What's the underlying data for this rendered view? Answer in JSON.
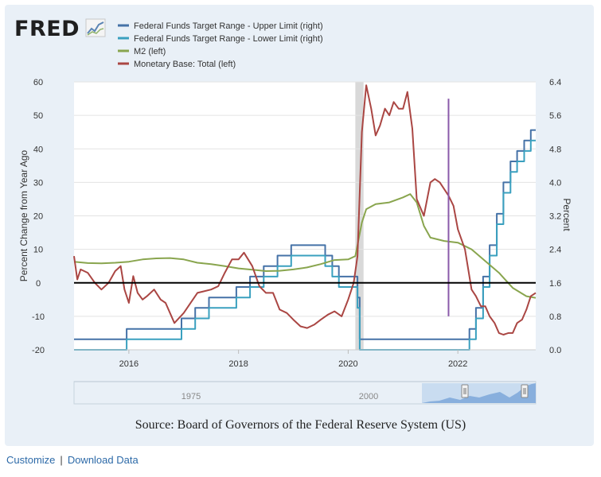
{
  "brand": {
    "logo_text": "FRED"
  },
  "legend": [
    {
      "label": "Federal Funds Target Range - Upper Limit (right)",
      "color": "#4572a7"
    },
    {
      "label": "Federal Funds Target Range - Lower Limit (right)",
      "color": "#3aa0bf"
    },
    {
      "label": "M2 (left)",
      "color": "#89a54e"
    },
    {
      "label": "Monetary Base: Total (left)",
      "color": "#aa4643"
    }
  ],
  "source_text": "Source: Board of Governors of the Federal Reserve System (US)",
  "footer": {
    "customize_label": "Customize",
    "separator": "|",
    "download_label": "Download Data"
  },
  "navigator": {
    "labels": [
      "1975",
      "2000"
    ]
  },
  "chart_data": {
    "type": "line",
    "xlim": [
      2015.0,
      2023.42
    ],
    "x_ticks": [
      "2016",
      "2018",
      "2020",
      "2022"
    ],
    "x_tick_values": [
      2016,
      2018,
      2020,
      2022
    ],
    "left_axis": {
      "label": "Percent Change from Year Ago",
      "ylim": [
        -20,
        60
      ],
      "ticks": [
        -20,
        -10,
        0,
        10,
        20,
        30,
        40,
        50,
        60
      ]
    },
    "right_axis": {
      "label": "Percent",
      "ylim": [
        0,
        6.4
      ],
      "ticks": [
        "0.0",
        "0.8",
        "1.6",
        "2.4",
        "3.2",
        "4.0",
        "4.8",
        "5.6",
        "6.4"
      ],
      "tick_values": [
        0,
        0.8,
        1.6,
        2.4,
        3.2,
        4.0,
        4.8,
        5.6,
        6.4
      ]
    },
    "recession_shading": [
      [
        2020.13,
        2020.28
      ]
    ],
    "zero_line": 0,
    "vertical_marker": {
      "x": 2021.83,
      "y_range": [
        -10,
        55
      ],
      "color": "#8a5aaa"
    },
    "series": [
      {
        "name": "Federal Funds Target Range - Upper Limit (right)",
        "axis": "right",
        "color": "#4572a7",
        "step": true,
        "points": [
          [
            2015.0,
            0.25
          ],
          [
            2015.96,
            0.5
          ],
          [
            2016.96,
            0.75
          ],
          [
            2017.21,
            1.0
          ],
          [
            2017.46,
            1.25
          ],
          [
            2017.96,
            1.5
          ],
          [
            2018.21,
            1.75
          ],
          [
            2018.46,
            2.0
          ],
          [
            2018.71,
            2.25
          ],
          [
            2018.96,
            2.5
          ],
          [
            2019.58,
            2.25
          ],
          [
            2019.71,
            2.0
          ],
          [
            2019.83,
            1.75
          ],
          [
            2020.17,
            1.25
          ],
          [
            2020.21,
            0.25
          ],
          [
            2022.21,
            0.5
          ],
          [
            2022.33,
            1.0
          ],
          [
            2022.46,
            1.75
          ],
          [
            2022.58,
            2.5
          ],
          [
            2022.71,
            3.25
          ],
          [
            2022.83,
            4.0
          ],
          [
            2022.96,
            4.5
          ],
          [
            2023.08,
            4.75
          ],
          [
            2023.21,
            5.0
          ],
          [
            2023.33,
            5.25
          ],
          [
            2023.42,
            5.25
          ]
        ]
      },
      {
        "name": "Federal Funds Target Range - Lower Limit (right)",
        "axis": "right",
        "color": "#3aa0bf",
        "step": true,
        "points": [
          [
            2015.0,
            0.0
          ],
          [
            2015.96,
            0.25
          ],
          [
            2016.96,
            0.5
          ],
          [
            2017.21,
            0.75
          ],
          [
            2017.46,
            1.0
          ],
          [
            2017.96,
            1.25
          ],
          [
            2018.21,
            1.5
          ],
          [
            2018.46,
            1.75
          ],
          [
            2018.71,
            2.0
          ],
          [
            2018.96,
            2.25
          ],
          [
            2019.58,
            2.0
          ],
          [
            2019.71,
            1.75
          ],
          [
            2019.83,
            1.5
          ],
          [
            2020.17,
            1.0
          ],
          [
            2020.21,
            0.0
          ],
          [
            2022.21,
            0.25
          ],
          [
            2022.33,
            0.75
          ],
          [
            2022.46,
            1.5
          ],
          [
            2022.58,
            2.25
          ],
          [
            2022.71,
            3.0
          ],
          [
            2022.83,
            3.75
          ],
          [
            2022.96,
            4.25
          ],
          [
            2023.08,
            4.5
          ],
          [
            2023.21,
            4.75
          ],
          [
            2023.33,
            5.0
          ],
          [
            2023.42,
            5.0
          ]
        ]
      },
      {
        "name": "M2 (left)",
        "axis": "left",
        "color": "#89a54e",
        "step": false,
        "points": [
          [
            2015.0,
            6.3
          ],
          [
            2015.25,
            5.9
          ],
          [
            2015.5,
            5.8
          ],
          [
            2015.75,
            6.0
          ],
          [
            2016.0,
            6.3
          ],
          [
            2016.25,
            7.0
          ],
          [
            2016.5,
            7.3
          ],
          [
            2016.75,
            7.4
          ],
          [
            2017.0,
            7.0
          ],
          [
            2017.25,
            6.0
          ],
          [
            2017.5,
            5.6
          ],
          [
            2017.75,
            5.0
          ],
          [
            2018.0,
            4.3
          ],
          [
            2018.25,
            3.9
          ],
          [
            2018.5,
            3.5
          ],
          [
            2018.75,
            3.6
          ],
          [
            2019.0,
            4.0
          ],
          [
            2019.25,
            4.6
          ],
          [
            2019.5,
            5.6
          ],
          [
            2019.75,
            6.8
          ],
          [
            2020.0,
            7.0
          ],
          [
            2020.13,
            8.0
          ],
          [
            2020.25,
            18.0
          ],
          [
            2020.33,
            22.0
          ],
          [
            2020.5,
            23.5
          ],
          [
            2020.75,
            24.0
          ],
          [
            2021.0,
            25.5
          ],
          [
            2021.13,
            26.5
          ],
          [
            2021.25,
            24.0
          ],
          [
            2021.38,
            17.0
          ],
          [
            2021.5,
            13.5
          ],
          [
            2021.75,
            12.5
          ],
          [
            2022.0,
            12.0
          ],
          [
            2022.25,
            10.0
          ],
          [
            2022.5,
            6.5
          ],
          [
            2022.75,
            3.0
          ],
          [
            2023.0,
            -1.5
          ],
          [
            2023.25,
            -4.0
          ],
          [
            2023.42,
            -4.5
          ]
        ]
      },
      {
        "name": "Monetary Base: Total (left)",
        "axis": "left",
        "color": "#aa4643",
        "step": false,
        "points": [
          [
            2015.0,
            8.0
          ],
          [
            2015.06,
            1.0
          ],
          [
            2015.12,
            4.0
          ],
          [
            2015.25,
            3.0
          ],
          [
            2015.38,
            0.0
          ],
          [
            2015.5,
            -2.0
          ],
          [
            2015.63,
            0.0
          ],
          [
            2015.75,
            3.5
          ],
          [
            2015.85,
            5.0
          ],
          [
            2015.92,
            -2.0
          ],
          [
            2016.0,
            -6.0
          ],
          [
            2016.08,
            2.0
          ],
          [
            2016.16,
            -3.0
          ],
          [
            2016.25,
            -5.0
          ],
          [
            2016.33,
            -4.0
          ],
          [
            2016.46,
            -2.0
          ],
          [
            2016.58,
            -5.0
          ],
          [
            2016.67,
            -6.0
          ],
          [
            2016.83,
            -12.0
          ],
          [
            2017.0,
            -9.0
          ],
          [
            2017.25,
            -3.0
          ],
          [
            2017.5,
            -2.0
          ],
          [
            2017.63,
            -1.0
          ],
          [
            2017.75,
            3.0
          ],
          [
            2017.88,
            7.0
          ],
          [
            2018.0,
            7.0
          ],
          [
            2018.1,
            9.0
          ],
          [
            2018.25,
            5.0
          ],
          [
            2018.38,
            -1.0
          ],
          [
            2018.5,
            -3.0
          ],
          [
            2018.63,
            -3.0
          ],
          [
            2018.75,
            -8.0
          ],
          [
            2018.88,
            -9.0
          ],
          [
            2019.0,
            -11.0
          ],
          [
            2019.13,
            -13.0
          ],
          [
            2019.25,
            -13.5
          ],
          [
            2019.38,
            -12.5
          ],
          [
            2019.5,
            -11.0
          ],
          [
            2019.63,
            -9.5
          ],
          [
            2019.75,
            -8.5
          ],
          [
            2019.88,
            -10.0
          ],
          [
            2020.0,
            -5.0
          ],
          [
            2020.1,
            0.0
          ],
          [
            2020.17,
            8.0
          ],
          [
            2020.25,
            45.0
          ],
          [
            2020.33,
            59.0
          ],
          [
            2020.42,
            52.0
          ],
          [
            2020.5,
            44.0
          ],
          [
            2020.58,
            47.0
          ],
          [
            2020.67,
            52.0
          ],
          [
            2020.75,
            50.0
          ],
          [
            2020.83,
            54.0
          ],
          [
            2020.92,
            52.0
          ],
          [
            2021.0,
            52.0
          ],
          [
            2021.08,
            57.0
          ],
          [
            2021.17,
            46.0
          ],
          [
            2021.25,
            25.0
          ],
          [
            2021.38,
            20.0
          ],
          [
            2021.5,
            30.0
          ],
          [
            2021.58,
            31.0
          ],
          [
            2021.67,
            30.0
          ],
          [
            2021.75,
            28.0
          ],
          [
            2021.83,
            26.0
          ],
          [
            2021.92,
            23.0
          ],
          [
            2022.0,
            16.0
          ],
          [
            2022.13,
            10.0
          ],
          [
            2022.25,
            -2.0
          ],
          [
            2022.33,
            -4.0
          ],
          [
            2022.42,
            -7.0
          ],
          [
            2022.5,
            -7.0
          ],
          [
            2022.58,
            -10.0
          ],
          [
            2022.67,
            -12.0
          ],
          [
            2022.75,
            -15.0
          ],
          [
            2022.83,
            -15.5
          ],
          [
            2022.92,
            -15.0
          ],
          [
            2023.0,
            -15.0
          ],
          [
            2023.08,
            -12.0
          ],
          [
            2023.17,
            -11.0
          ],
          [
            2023.25,
            -8.0
          ],
          [
            2023.33,
            -4.0
          ],
          [
            2023.42,
            -3.0
          ]
        ]
      }
    ]
  }
}
